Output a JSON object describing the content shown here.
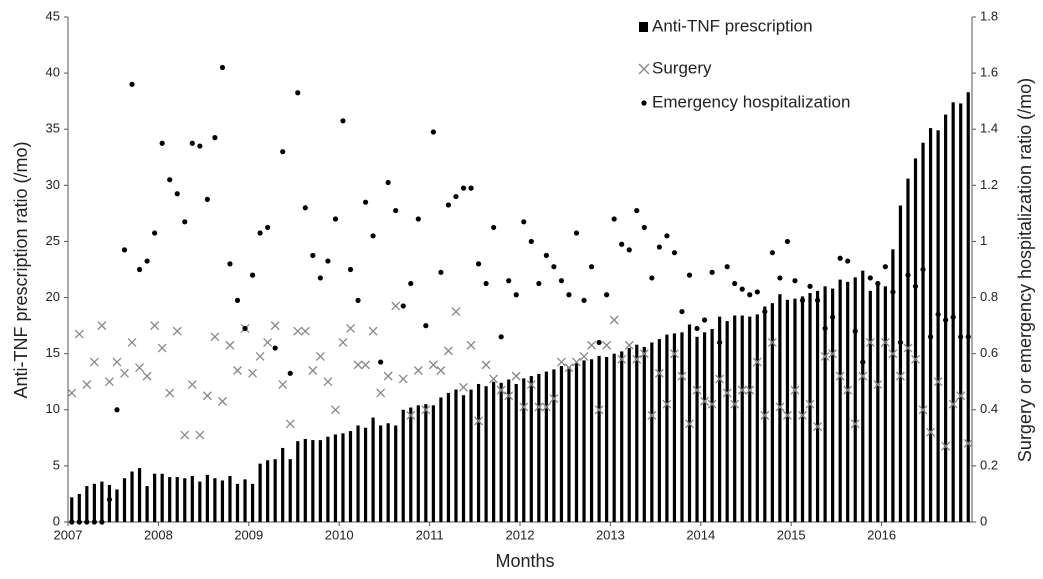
{
  "chart_data": {
    "type": "bar",
    "x_label": "Months",
    "y_label": "Anti-TNF prescription ratio (/mo)",
    "y2_label": "Surgery or emergency hospitalization ratio (/mo)",
    "categories": [
      "2007",
      null,
      null,
      null,
      null,
      null,
      null,
      null,
      null,
      null,
      null,
      null,
      "2008",
      null,
      null,
      null,
      null,
      null,
      null,
      null,
      null,
      null,
      null,
      null,
      "2009",
      null,
      null,
      null,
      null,
      null,
      null,
      null,
      null,
      null,
      null,
      null,
      "2010",
      null,
      null,
      null,
      null,
      null,
      null,
      null,
      null,
      null,
      null,
      null,
      "2011",
      null,
      null,
      null,
      null,
      null,
      null,
      null,
      null,
      null,
      null,
      null,
      "2012",
      null,
      null,
      null,
      null,
      null,
      null,
      null,
      null,
      null,
      null,
      null,
      "2013",
      null,
      null,
      null,
      null,
      null,
      null,
      null,
      null,
      null,
      null,
      null,
      "2014",
      null,
      null,
      null,
      null,
      null,
      null,
      null,
      null,
      null,
      null,
      null,
      "2015",
      null,
      null,
      null,
      null,
      null,
      null,
      null,
      null,
      null,
      null,
      null,
      "2016",
      null,
      null,
      null,
      null,
      null,
      null,
      null,
      null,
      null,
      null,
      null
    ],
    "ylim": [
      0,
      45
    ],
    "yticks": [
      0,
      5,
      10,
      15,
      20,
      25,
      30,
      35,
      40,
      45
    ],
    "y2lim": [
      0,
      1.8
    ],
    "y2ticks": [
      0,
      0.2,
      0.4,
      0.6,
      0.8,
      1,
      1.2,
      1.4,
      1.6,
      1.8
    ],
    "legend": "upper right",
    "series": [
      {
        "name": "Anti-TNF prescription",
        "type": "bar",
        "color": "#000000",
        "values": [
          2.2,
          2.5,
          3.2,
          3.4,
          3.6,
          3.3,
          2.9,
          3.9,
          4.5,
          4.8,
          3.2,
          4.3,
          4.3,
          4.0,
          4.0,
          3.9,
          4.1,
          3.6,
          4.2,
          3.9,
          3.7,
          4.1,
          3.4,
          3.8,
          3.4,
          5.2,
          5.5,
          5.6,
          6.6,
          5.6,
          7.2,
          7.4,
          7.3,
          7.3,
          7.6,
          7.8,
          7.9,
          8.1,
          8.6,
          8.4,
          9.3,
          8.6,
          8.8,
          8.6,
          10.0,
          10.2,
          10.4,
          10.5,
          10.4,
          11.1,
          11.5,
          11.8,
          11.3,
          11.8,
          12.3,
          12.1,
          12.5,
          12.4,
          12.7,
          12.3,
          12.8,
          13.0,
          13.2,
          13.4,
          13.6,
          13.9,
          13.8,
          14.2,
          14.4,
          14.5,
          14.8,
          14.7,
          15.0,
          15.2,
          15.5,
          15.8,
          15.6,
          16.0,
          16.3,
          16.7,
          16.8,
          16.9,
          17.6,
          16.5,
          16.9,
          17.2,
          18.3,
          17.9,
          18.4,
          18.4,
          18.3,
          18.5,
          19.2,
          19.5,
          20.3,
          19.8,
          19.9,
          20.1,
          20.4,
          20.6,
          21.0,
          20.8,
          21.6,
          21.4,
          21.8,
          22.4,
          20.6,
          21.4,
          21.0,
          24.3,
          28.2,
          30.6,
          32.4,
          33.8,
          35.1,
          34.9,
          36.3,
          37.4,
          37.3,
          38.3
        ]
      },
      {
        "name": "Surgery",
        "type": "scatter",
        "marker": "x",
        "axis": "y2",
        "color": "#888888",
        "values": [
          0.46,
          0.67,
          0.49,
          0.57,
          0.7,
          0.5,
          0.57,
          0.53,
          0.64,
          0.55,
          0.52,
          0.7,
          0.62,
          0.46,
          0.68,
          0.31,
          0.49,
          0.31,
          0.45,
          0.66,
          0.43,
          0.63,
          0.54,
          0.69,
          0.53,
          0.59,
          0.64,
          0.7,
          0.49,
          0.35,
          0.68,
          0.68,
          0.54,
          0.59,
          0.5,
          0.4,
          0.64,
          0.69,
          0.56,
          0.56,
          0.68,
          0.46,
          0.52,
          0.77,
          0.51,
          0.38,
          0.54,
          0.4,
          0.56,
          0.54,
          0.61,
          0.75,
          0.48,
          0.63,
          0.36,
          0.56,
          0.51,
          0.47,
          0.45,
          0.52,
          0.41,
          0.49,
          0.41,
          0.41,
          0.44,
          0.57,
          0.55,
          0.57,
          0.59,
          0.63,
          0.4,
          0.63,
          0.72,
          0.58,
          0.63,
          0.58,
          0.6,
          0.38,
          0.53,
          0.42,
          0.6,
          0.52,
          0.35,
          0.47,
          0.43,
          0.42,
          0.51,
          0.46,
          0.42,
          0.47,
          0.47,
          0.57,
          0.38,
          0.64,
          0.41,
          0.38,
          0.47,
          0.38,
          0.42,
          0.34,
          0.59,
          0.6,
          0.52,
          0.47,
          0.35,
          0.52,
          0.64,
          0.49,
          0.64,
          0.6,
          0.52,
          0.62,
          0.58,
          0.4,
          0.32,
          0.5,
          0.27,
          0.42,
          0.45,
          0.28
        ]
      },
      {
        "name": "Emergency hospitalization",
        "type": "scatter",
        "marker": "dot",
        "axis": "y2",
        "color": "#000000",
        "values": [
          0,
          0,
          0,
          0,
          0,
          0.08,
          0.4,
          0.97,
          1.56,
          0.9,
          0.93,
          1.03,
          1.35,
          1.22,
          1.17,
          1.07,
          1.35,
          1.34,
          1.15,
          1.37,
          1.62,
          0.92,
          0.79,
          0.69,
          0.88,
          1.03,
          1.05,
          0.62,
          1.32,
          0.53,
          1.53,
          1.12,
          0.95,
          0.87,
          0.93,
          1.08,
          1.43,
          0.9,
          0.79,
          1.14,
          1.02,
          0.57,
          1.21,
          1.11,
          0.77,
          0.85,
          1.08,
          0.7,
          1.39,
          0.89,
          1.13,
          1.16,
          1.19,
          1.19,
          0.92,
          0.85,
          1.05,
          0.66,
          0.86,
          0.81,
          1.07,
          1.0,
          0.85,
          0.95,
          0.91,
          0.86,
          0.81,
          1.03,
          0.79,
          0.91,
          0.64,
          0.81,
          1.08,
          0.99,
          0.97,
          1.11,
          1.05,
          0.87,
          0.98,
          1.02,
          0.96,
          0.75,
          0.88,
          0.69,
          0.72,
          0.89,
          0.64,
          0.91,
          0.85,
          0.83,
          0.81,
          0.82,
          0.75,
          0.96,
          0.87,
          1.0,
          0.86,
          0.79,
          0.84,
          0.79,
          0.69,
          0.73,
          0.94,
          0.93,
          0.68,
          0.57,
          0.87,
          0.85,
          0.91,
          0.82,
          0.64,
          0.88,
          0.84,
          0.9,
          0.66,
          0.74,
          0.72,
          0.73,
          0.66,
          0.66
        ]
      }
    ]
  }
}
